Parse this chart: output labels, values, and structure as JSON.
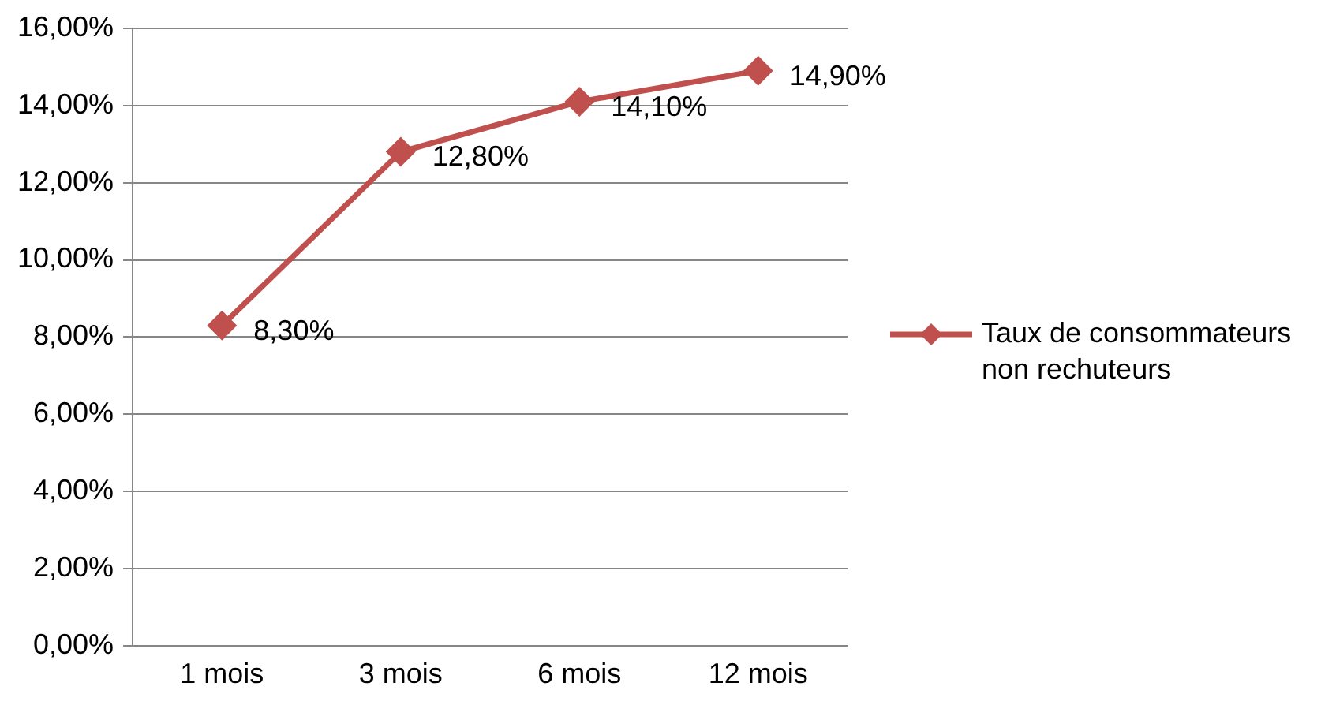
{
  "chart_data": {
    "type": "line",
    "categories": [
      "1 mois",
      "3 mois",
      "6 mois",
      "12 mois"
    ],
    "series": [
      {
        "name": "Taux de consommateurs non rechuteurs",
        "color": "#c0504d",
        "values": [
          8.3,
          12.8,
          14.1,
          14.9
        ],
        "value_labels": [
          "8,30%",
          "12,80%",
          "14,10%",
          "14,90%"
        ]
      }
    ],
    "ylim": [
      0,
      16
    ],
    "yticks": [
      {
        "value": 0,
        "label": "0,00%"
      },
      {
        "value": 2,
        "label": "2,00%"
      },
      {
        "value": 4,
        "label": "4,00%"
      },
      {
        "value": 6,
        "label": "6,00%"
      },
      {
        "value": 8,
        "label": "8,00%"
      },
      {
        "value": 10,
        "label": "10,00%"
      },
      {
        "value": 12,
        "label": "12,00%"
      },
      {
        "value": 14,
        "label": "14,00%"
      },
      {
        "value": 16,
        "label": "16,00%"
      }
    ],
    "grid": "y",
    "legend": "right",
    "marker": "diamond",
    "line_style": "solid"
  }
}
